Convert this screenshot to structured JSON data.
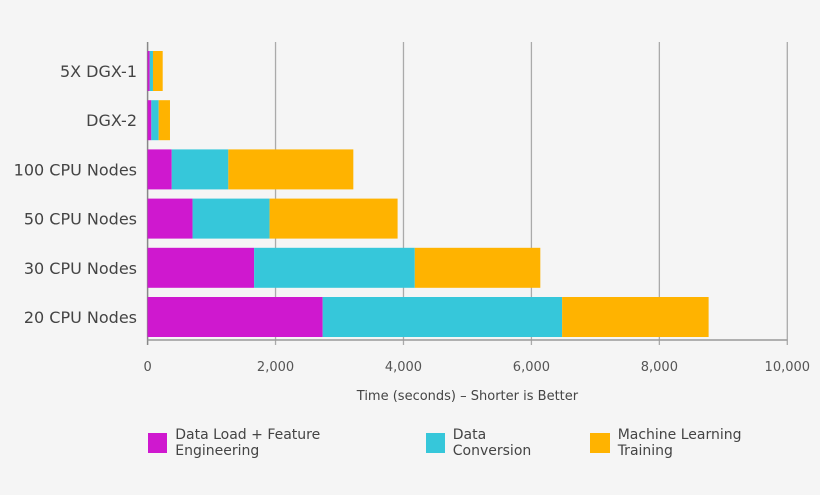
{
  "chart_data": {
    "type": "bar",
    "orientation": "horizontal",
    "stacked": true,
    "title": "",
    "xlabel": "Time (seconds) – Shorter is Better",
    "ylabel": "",
    "xlim": [
      0,
      10000
    ],
    "xticks": [
      0,
      2000,
      4000,
      6000,
      8000,
      10000
    ],
    "xtick_labels": [
      "0",
      "2,000",
      "4,000",
      "6,000",
      "8,000",
      "10,000"
    ],
    "grid": true,
    "legend_position": "bottom",
    "categories": [
      "5X DGX-1",
      "DGX-2",
      "100 CPU Nodes",
      "50 CPU Nodes",
      "30 CPU Nodes",
      "20 CPU Nodes"
    ],
    "series": [
      {
        "name": "Data Load + Feature Engineering",
        "color": "#CF18CF",
        "values": [
          33,
          58,
          377,
          703,
          1665,
          2737
        ]
      },
      {
        "name": "Data Conversion",
        "color": "#36C7DA",
        "values": [
          51,
          115,
          885,
          1204,
          2512,
          3743
        ]
      },
      {
        "name": "Machine Learning Training",
        "color": "#FFB300",
        "values": [
          152,
          177,
          1954,
          2001,
          1962,
          2290
        ]
      }
    ]
  }
}
